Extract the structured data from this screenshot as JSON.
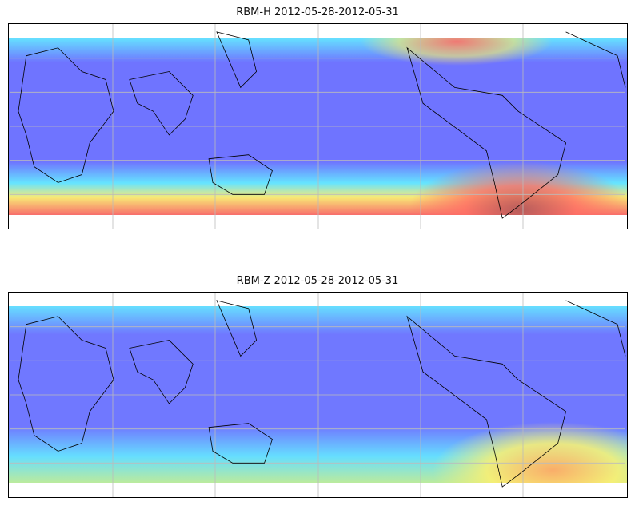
{
  "panels": [
    {
      "title": "RBM-H 2012-05-28-2012-05-31",
      "variable": "RBM-H"
    },
    {
      "title": "RBM-Z 2012-05-28-2012-05-31",
      "variable": "RBM-Z"
    }
  ],
  "colors": {
    "low": "#6a6aff",
    "mid": "#5ff0ff",
    "high_yellow": "#ffff6a",
    "high_red": "#ff6a6a"
  }
}
